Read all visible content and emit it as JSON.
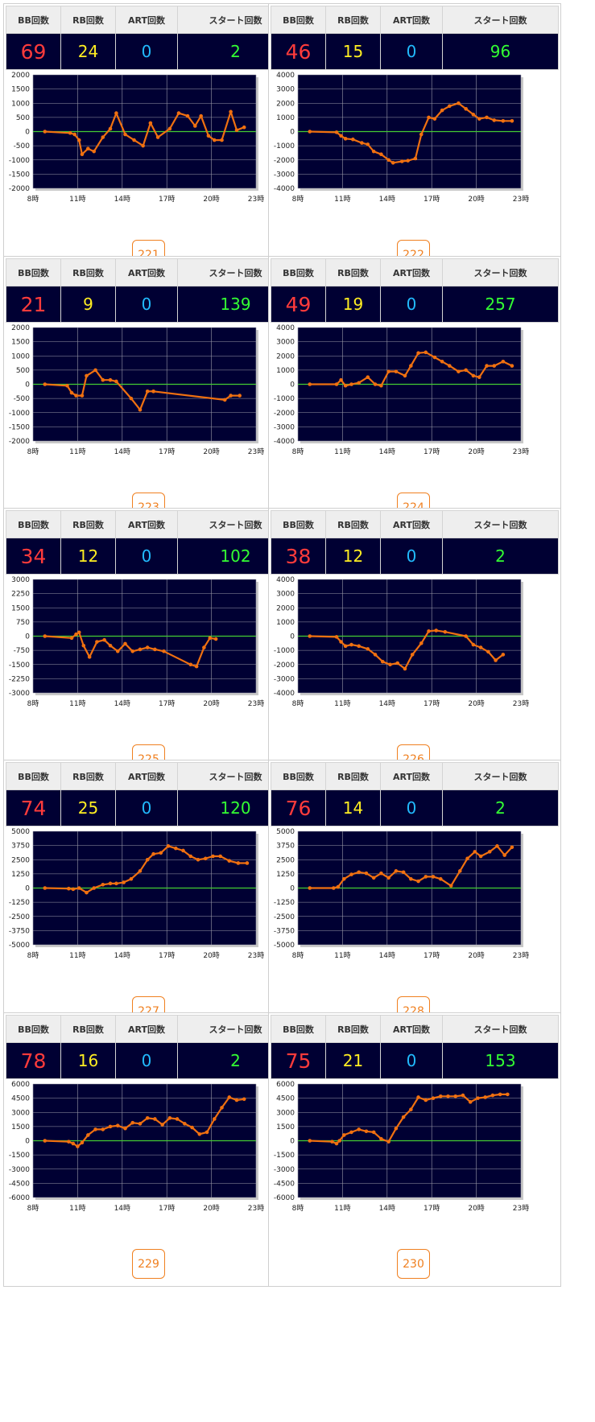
{
  "headers": {
    "bb": "BB回数",
    "rb": "RB回数",
    "art": "ART回数",
    "start": "スタート回数"
  },
  "x_tick_labels": [
    "8時",
    "11時",
    "14時",
    "17時",
    "20時",
    "23時"
  ],
  "colors": {
    "bb": "#ff3b3b",
    "rb": "#ffee22",
    "art": "#22bbff",
    "start": "#33ff33",
    "plot_bg": "#000033",
    "line": "#f07010",
    "zero_line": "#44cc33",
    "button": "#f08020"
  },
  "machines": [
    {
      "number": "221",
      "bb": "69",
      "rb": "24",
      "art": "0",
      "start": "2"
    },
    {
      "number": "222",
      "bb": "46",
      "rb": "15",
      "art": "0",
      "start": "96"
    },
    {
      "number": "223",
      "bb": "21",
      "rb": "9",
      "art": "0",
      "start": "139"
    },
    {
      "number": "224",
      "bb": "49",
      "rb": "19",
      "art": "0",
      "start": "257"
    },
    {
      "number": "225",
      "bb": "34",
      "rb": "12",
      "art": "0",
      "start": "102"
    },
    {
      "number": "226",
      "bb": "38",
      "rb": "12",
      "art": "0",
      "start": "2"
    },
    {
      "number": "227",
      "bb": "74",
      "rb": "25",
      "art": "0",
      "start": "120"
    },
    {
      "number": "228",
      "bb": "76",
      "rb": "14",
      "art": "0",
      "start": "2"
    },
    {
      "number": "229",
      "bb": "78",
      "rb": "16",
      "art": "0",
      "start": "2"
    },
    {
      "number": "230",
      "bb": "75",
      "rb": "21",
      "art": "0",
      "start": "153"
    }
  ],
  "chart_data": [
    {
      "type": "line",
      "ylim": [
        -2000,
        2000
      ],
      "xlim": [
        8,
        23
      ],
      "grid": true,
      "yticks": [
        "2000",
        "1500",
        "1000",
        "500",
        "0",
        "-500",
        "-1000",
        "-1500",
        "-2000"
      ],
      "x": [
        8.8,
        10.5,
        10.8,
        11.1,
        11.3,
        11.7,
        12.1,
        12.7,
        13.2,
        13.6,
        14.2,
        14.8,
        15.4,
        15.9,
        16.4,
        17.2,
        17.8,
        18.4,
        18.9,
        19.3,
        19.8,
        20.2,
        20.7,
        21.3,
        21.7,
        22.2
      ],
      "y": [
        0,
        -50,
        -100,
        -300,
        -800,
        -600,
        -700,
        -200,
        100,
        650,
        -100,
        -300,
        -500,
        300,
        -200,
        100,
        650,
        550,
        200,
        550,
        -150,
        -300,
        -300,
        700,
        50,
        150
      ]
    },
    {
      "type": "line",
      "ylim": [
        -4000,
        4000
      ],
      "xlim": [
        8,
        23
      ],
      "grid": true,
      "yticks": [
        "4000",
        "3000",
        "2000",
        "1000",
        "0",
        "-1000",
        "-2000",
        "-3000",
        "-4000"
      ],
      "x": [
        8.8,
        10.6,
        10.9,
        11.2,
        11.7,
        12.3,
        12.7,
        13.1,
        13.6,
        14.1,
        14.4,
        15.0,
        15.4,
        15.9,
        16.3,
        16.8,
        17.2,
        17.7,
        18.2,
        18.8,
        19.3,
        19.8,
        20.2,
        20.7,
        21.2,
        21.8,
        22.4
      ],
      "y": [
        0,
        -50,
        -300,
        -500,
        -550,
        -800,
        -900,
        -1400,
        -1600,
        -2000,
        -2200,
        -2100,
        -2050,
        -1900,
        -200,
        1000,
        900,
        1500,
        1800,
        2000,
        1600,
        1200,
        900,
        1000,
        800,
        750,
        750
      ]
    },
    {
      "type": "line",
      "ylim": [
        -2000,
        2000
      ],
      "xlim": [
        8,
        23
      ],
      "grid": true,
      "yticks": [
        "2000",
        "1500",
        "1000",
        "500",
        "0",
        "-500",
        "-1000",
        "-1500",
        "-2000"
      ],
      "x": [
        8.8,
        10.3,
        10.6,
        10.9,
        11.3,
        11.6,
        12.2,
        12.7,
        13.2,
        13.6,
        14.6,
        15.2,
        15.7,
        16.1,
        20.9,
        21.3,
        21.9
      ],
      "y": [
        0,
        -50,
        -300,
        -400,
        -400,
        300,
        500,
        150,
        150,
        100,
        -500,
        -900,
        -250,
        -250,
        -550,
        -400,
        -400
      ]
    },
    {
      "type": "line",
      "ylim": [
        -4000,
        4000
      ],
      "xlim": [
        8,
        23
      ],
      "grid": true,
      "yticks": [
        "4000",
        "3000",
        "2000",
        "1000",
        "0",
        "-1000",
        "-2000",
        "-3000",
        "-4000"
      ],
      "x": [
        8.8,
        10.6,
        10.9,
        11.2,
        11.6,
        12.1,
        12.7,
        13.2,
        13.6,
        14.1,
        14.6,
        15.2,
        15.6,
        16.1,
        16.6,
        17.2,
        17.7,
        18.2,
        18.8,
        19.3,
        19.8,
        20.2,
        20.7,
        21.2,
        21.8,
        22.4
      ],
      "y": [
        0,
        0,
        300,
        -100,
        0,
        100,
        500,
        0,
        -100,
        900,
        900,
        600,
        1300,
        2200,
        2250,
        1900,
        1600,
        1300,
        900,
        1000,
        600,
        500,
        1300,
        1300,
        1600,
        1300
      ]
    },
    {
      "type": "line",
      "ylim": [
        -3000,
        3000
      ],
      "xlim": [
        8,
        23
      ],
      "grid": true,
      "yticks": [
        "3000",
        "2250",
        "1500",
        "750",
        "0",
        "-750",
        "-1500",
        "-2250",
        "-3000"
      ],
      "x": [
        8.8,
        10.6,
        10.9,
        11.1,
        11.4,
        11.8,
        12.3,
        12.8,
        13.2,
        13.7,
        14.2,
        14.7,
        15.2,
        15.7,
        16.2,
        16.8,
        18.6,
        19.0,
        19.5,
        19.9,
        20.3
      ],
      "y": [
        0,
        -100,
        100,
        200,
        -500,
        -1100,
        -300,
        -200,
        -500,
        -800,
        -400,
        -800,
        -700,
        -600,
        -700,
        -800,
        -1500,
        -1600,
        -600,
        -100,
        -150
      ]
    },
    {
      "type": "line",
      "ylim": [
        -4000,
        4000
      ],
      "xlim": [
        8,
        23
      ],
      "grid": true,
      "yticks": [
        "4000",
        "3000",
        "2000",
        "1000",
        "0",
        "-1000",
        "-2000",
        "-3000",
        "-4000"
      ],
      "x": [
        8.8,
        10.6,
        10.9,
        11.2,
        11.6,
        12.1,
        12.7,
        13.2,
        13.7,
        14.2,
        14.7,
        15.2,
        15.7,
        16.3,
        16.8,
        17.3,
        17.9,
        19.3,
        19.8,
        20.3,
        20.8,
        21.3,
        21.8
      ],
      "y": [
        0,
        -50,
        -400,
        -700,
        -600,
        -700,
        -900,
        -1300,
        -1800,
        -2000,
        -1900,
        -2300,
        -1300,
        -500,
        350,
        400,
        300,
        0,
        -600,
        -800,
        -1100,
        -1700,
        -1300
      ]
    },
    {
      "type": "line",
      "ylim": [
        -5000,
        5000
      ],
      "xlim": [
        8,
        23
      ],
      "grid": true,
      "yticks": [
        "5000",
        "3750",
        "2500",
        "1250",
        "0",
        "-1250",
        "-2500",
        "-3750",
        "-5000"
      ],
      "x": [
        8.8,
        10.4,
        10.7,
        11.1,
        11.6,
        12.1,
        12.7,
        13.2,
        13.6,
        14.1,
        14.6,
        15.2,
        15.7,
        16.1,
        16.6,
        17.1,
        17.6,
        18.1,
        18.6,
        19.1,
        19.6,
        20.1,
        20.6,
        21.2,
        21.8,
        22.4
      ],
      "y": [
        0,
        -50,
        -100,
        0,
        -400,
        0,
        300,
        400,
        400,
        500,
        800,
        1500,
        2500,
        3000,
        3100,
        3700,
        3500,
        3300,
        2800,
        2500,
        2600,
        2800,
        2800,
        2400,
        2200,
        2200
      ]
    },
    {
      "type": "line",
      "ylim": [
        -5000,
        5000
      ],
      "xlim": [
        8,
        23
      ],
      "grid": true,
      "yticks": [
        "5000",
        "3750",
        "2500",
        "1250",
        "0",
        "-1250",
        "-2500",
        "-3750",
        "-5000"
      ],
      "x": [
        8.8,
        10.4,
        10.7,
        11.1,
        11.6,
        12.1,
        12.6,
        13.1,
        13.6,
        14.1,
        14.6,
        15.1,
        15.6,
        16.1,
        16.6,
        17.1,
        17.6,
        18.3,
        18.9,
        19.4,
        19.9,
        20.3,
        20.9,
        21.4,
        21.9,
        22.4
      ],
      "y": [
        0,
        0,
        100,
        800,
        1200,
        1400,
        1300,
        900,
        1300,
        900,
        1500,
        1400,
        800,
        600,
        1000,
        1000,
        800,
        200,
        1500,
        2600,
        3200,
        2800,
        3200,
        3700,
        2900,
        3600
      ]
    },
    {
      "type": "line",
      "ylim": [
        -6000,
        6000
      ],
      "xlim": [
        8,
        23
      ],
      "grid": true,
      "yticks": [
        "6000",
        "4500",
        "3000",
        "1500",
        "0",
        "-1500",
        "-3000",
        "-4500",
        "-6000"
      ],
      "x": [
        8.8,
        10.4,
        10.7,
        11.0,
        11.3,
        11.7,
        12.2,
        12.7,
        13.2,
        13.7,
        14.2,
        14.7,
        15.2,
        15.7,
        16.2,
        16.7,
        17.2,
        17.7,
        18.2,
        18.7,
        19.2,
        19.7,
        20.2,
        20.7,
        21.2,
        21.7,
        22.2
      ],
      "y": [
        0,
        -100,
        -300,
        -600,
        -200,
        600,
        1200,
        1200,
        1500,
        1600,
        1300,
        1900,
        1800,
        2400,
        2300,
        1700,
        2400,
        2300,
        1800,
        1400,
        700,
        900,
        2300,
        3500,
        4600,
        4300,
        4400
      ]
    },
    {
      "type": "line",
      "ylim": [
        -6000,
        6000
      ],
      "xlim": [
        8,
        23
      ],
      "grid": true,
      "yticks": [
        "6000",
        "4500",
        "3000",
        "1500",
        "0",
        "-1500",
        "-3000",
        "-4500",
        "-6000"
      ],
      "x": [
        8.8,
        10.3,
        10.6,
        10.8,
        11.1,
        11.6,
        12.1,
        12.6,
        13.1,
        13.6,
        14.1,
        14.6,
        15.1,
        15.6,
        16.1,
        16.6,
        17.1,
        17.6,
        18.1,
        18.6,
        19.1,
        19.6,
        20.1,
        20.6,
        21.1,
        21.6,
        22.1
      ],
      "y": [
        0,
        -100,
        -300,
        0,
        600,
        900,
        1200,
        1000,
        900,
        200,
        -100,
        1300,
        2500,
        3300,
        4600,
        4300,
        4500,
        4700,
        4700,
        4700,
        4800,
        4100,
        4500,
        4600,
        4800,
        4900,
        4900
      ]
    }
  ]
}
